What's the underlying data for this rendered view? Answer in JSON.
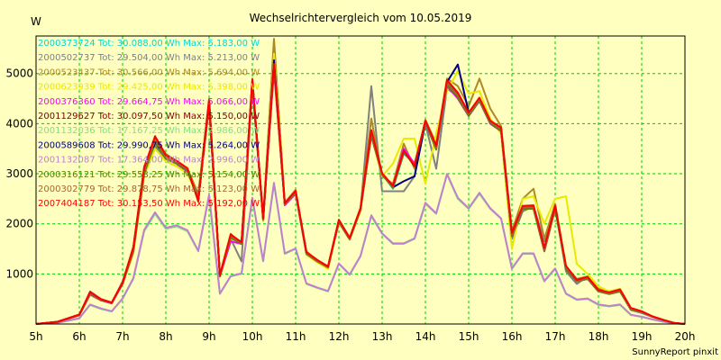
{
  "chart_data": {
    "type": "line",
    "title": "Wechselrichtervergleich vom 10.05.2019",
    "ylabel": "W",
    "xlabel": "",
    "footer": "SunnyReport pinxit",
    "x_ticks": [
      "5h",
      "6h",
      "7h",
      "8h",
      "9h",
      "10h",
      "11h",
      "12h",
      "13h",
      "14h",
      "15h",
      "16h",
      "17h",
      "18h",
      "19h",
      "20h"
    ],
    "y_ticks": [
      1000,
      2000,
      3000,
      4000,
      5000
    ],
    "xlim": [
      5,
      20
    ],
    "ylim": [
      0,
      5750
    ],
    "grid": true,
    "grid_color": "#00c800",
    "legend_position": "top-left",
    "x": [
      5.0,
      5.5,
      6.0,
      6.25,
      6.5,
      6.75,
      7.0,
      7.25,
      7.5,
      7.75,
      8.0,
      8.25,
      8.5,
      8.75,
      9.0,
      9.25,
      9.5,
      9.75,
      10.0,
      10.25,
      10.5,
      10.75,
      11.0,
      11.25,
      11.5,
      11.75,
      12.0,
      12.25,
      12.5,
      12.75,
      13.0,
      13.25,
      13.5,
      13.75,
      14.0,
      14.25,
      14.5,
      14.75,
      15.0,
      15.25,
      15.5,
      15.75,
      16.0,
      16.25,
      16.5,
      16.75,
      17.0,
      17.25,
      17.5,
      17.75,
      18.0,
      18.25,
      18.5,
      18.75,
      19.0,
      19.25,
      19.5,
      19.75,
      20.0
    ],
    "series": [
      {
        "name": "2000373724 Tot: 30.088,00 Wh Max: 5.183,00 W",
        "color": "#00d8d8",
        "values": [
          0,
          40,
          180,
          600,
          480,
          420,
          800,
          1450,
          3000,
          3600,
          3300,
          3200,
          3050,
          2550,
          4400,
          950,
          1750,
          1650,
          4850,
          2100,
          5180,
          2400,
          2650,
          1400,
          1250,
          1150,
          2050,
          1700,
          2300,
          3800,
          3000,
          2700,
          3400,
          3200,
          4050,
          3500,
          4800,
          4550,
          4200,
          4500,
          4050,
          3900,
          1800,
          2300,
          2300,
          1500,
          2300,
          1100,
          850,
          900,
          650,
          600,
          650,
          300,
          250,
          150,
          80,
          20,
          0
        ]
      },
      {
        "name": "2000502737 Tot: 29.504,00 Wh Max: 5.213,00 W",
        "color": "#808080",
        "values": [
          0,
          40,
          180,
          650,
          500,
          420,
          850,
          1500,
          3100,
          3550,
          3250,
          3150,
          3050,
          2500,
          4350,
          950,
          1700,
          1250,
          4800,
          2100,
          5213,
          2380,
          2600,
          1450,
          1250,
          1150,
          2050,
          1700,
          2280,
          4750,
          2650,
          2650,
          2650,
          2950,
          4000,
          3100,
          4700,
          4550,
          4200,
          4450,
          4000,
          3850,
          1700,
          2250,
          2350,
          1650,
          2350,
          1050,
          800,
          950,
          650,
          600,
          650,
          280,
          220,
          140,
          70,
          15,
          0
        ]
      },
      {
        "name": "2000523437 Tot: 30.566,00 Wh Max: 5.694,00 W",
        "color": "#b08820",
        "values": [
          0,
          45,
          190,
          620,
          500,
          430,
          830,
          1550,
          3150,
          3700,
          3400,
          3250,
          3100,
          2600,
          4500,
          980,
          1800,
          1600,
          4900,
          2100,
          5694,
          2420,
          2680,
          1430,
          1280,
          1150,
          2080,
          1720,
          2320,
          4100,
          2950,
          2800,
          3600,
          3100,
          4080,
          3600,
          4900,
          4750,
          4350,
          4900,
          4300,
          3950,
          1850,
          2500,
          2700,
          1700,
          2400,
          1150,
          900,
          950,
          700,
          650,
          700,
          320,
          250,
          150,
          80,
          20,
          0
        ]
      },
      {
        "name": "2000623939 Tot: 29.425,00 Wh Max: 5.398,00 W",
        "color": "#e8e800",
        "values": [
          0,
          40,
          170,
          580,
          470,
          420,
          790,
          1400,
          2950,
          3500,
          3250,
          3150,
          3000,
          2500,
          4380,
          940,
          1700,
          1600,
          4800,
          2050,
          5398,
          2380,
          2620,
          1380,
          1230,
          1100,
          2020,
          1680,
          2250,
          3750,
          2950,
          3200,
          3700,
          3700,
          2800,
          3800,
          4650,
          5050,
          4600,
          4650,
          4100,
          3800,
          1500,
          2500,
          2550,
          2000,
          2500,
          2550,
          1200,
          1000,
          750,
          650,
          700,
          300,
          240,
          150,
          80,
          20,
          0
        ]
      },
      {
        "name": "2000376360 Tot: 29.664,75 Wh Max: 5.066,00 W",
        "color": "#ff00ff",
        "values": [
          0,
          40,
          175,
          590,
          470,
          410,
          800,
          1450,
          3000,
          3650,
          3300,
          3200,
          3050,
          2500,
          4350,
          950,
          1650,
          1600,
          4750,
          2080,
          5066,
          2370,
          2600,
          1400,
          1250,
          1130,
          2030,
          1690,
          2280,
          3750,
          3000,
          2750,
          3500,
          3200,
          4000,
          3500,
          4750,
          4500,
          4150,
          4450,
          4000,
          3850,
          1750,
          2300,
          2300,
          1450,
          2300,
          1100,
          850,
          900,
          650,
          600,
          650,
          290,
          240,
          145,
          75,
          18,
          0
        ]
      },
      {
        "name": "2001129627 Tot: 30.097,50 Wh Max: 5.150,00 W",
        "color": "#800000",
        "values": [
          0,
          45,
          185,
          630,
          490,
          425,
          820,
          1520,
          3100,
          3720,
          3350,
          3250,
          3100,
          2450,
          4450,
          970,
          1780,
          1620,
          4850,
          2100,
          5150,
          2400,
          2650,
          1430,
          1270,
          1140,
          2070,
          1710,
          2300,
          3850,
          3000,
          2750,
          3450,
          3150,
          4050,
          3550,
          4850,
          4600,
          4200,
          4500,
          4050,
          3900,
          1800,
          2350,
          2350,
          1500,
          2350,
          1150,
          870,
          930,
          670,
          620,
          680,
          310,
          250,
          150,
          80,
          20,
          0
        ]
      },
      {
        "name": "2001132036 Tot: 17.167,25 Wh Max: 2.986,00 W",
        "color": "#80e080",
        "values": [
          0,
          25,
          110,
          380,
          300,
          250,
          500,
          900,
          1850,
          2200,
          1900,
          1950,
          1850,
          1450,
          2550,
          600,
          950,
          1000,
          2500,
          1250,
          2800,
          1400,
          1500,
          800,
          720,
          650,
          1200,
          980,
          1350,
          2150,
          1800,
          1600,
          1600,
          1700,
          2400,
          2200,
          2986,
          2500,
          2300,
          2600,
          2300,
          2100,
          1100,
          1400,
          1400,
          850,
          1100,
          600,
          480,
          500,
          380,
          350,
          380,
          180,
          140,
          90,
          45,
          12,
          0
        ]
      },
      {
        "name": "2000589608 Tot: 29.990,75 Wh Max: 5.264,00 W",
        "color": "#000080",
        "values": [
          0,
          42,
          180,
          610,
          485,
          420,
          810,
          1490,
          3050,
          3650,
          3320,
          3230,
          3080,
          2480,
          4420,
          960,
          1760,
          1610,
          4820,
          2090,
          5264,
          2390,
          2640,
          1410,
          1260,
          1140,
          2050,
          1700,
          2290,
          3800,
          3000,
          2730,
          2850,
          2950,
          4030,
          3520,
          4830,
          5180,
          4220,
          4480,
          4030,
          3870,
          1780,
          2320,
          2320,
          1480,
          2320,
          1120,
          860,
          910,
          660,
          610,
          660,
          300,
          245,
          148,
          78,
          19,
          0
        ]
      },
      {
        "name": "2001132087 Tot: 17.364,00 Wh Max: 2.996,00 W",
        "color": "#c080d0",
        "values": [
          0,
          25,
          115,
          390,
          310,
          255,
          510,
          920,
          1880,
          2230,
          1920,
          1970,
          1870,
          1460,
          2580,
          610,
          960,
          1010,
          2520,
          1260,
          2820,
          1410,
          1510,
          810,
          730,
          660,
          1210,
          990,
          1360,
          2170,
          1810,
          1610,
          1610,
          1710,
          2420,
          2210,
          2996,
          2520,
          2310,
          2620,
          2310,
          2110,
          1110,
          1410,
          1410,
          860,
          1110,
          610,
          490,
          510,
          390,
          360,
          390,
          185,
          145,
          92,
          46,
          12,
          0
        ]
      },
      {
        "name": "2000316121 Tot: 29.558,25 Wh Max: 5.154,00 W",
        "color": "#608000",
        "values": [
          0,
          40,
          178,
          600,
          478,
          418,
          805,
          1470,
          3020,
          3620,
          3300,
          3210,
          3060,
          2490,
          4360,
          950,
          1720,
          1600,
          4790,
          2080,
          5154,
          2380,
          2620,
          1400,
          1250,
          1130,
          2040,
          1690,
          2280,
          3770,
          2980,
          2720,
          3420,
          3180,
          4020,
          3480,
          4780,
          4520,
          4160,
          4460,
          4010,
          3850,
          1760,
          2300,
          2300,
          1460,
          2300,
          1100,
          850,
          900,
          650,
          600,
          650,
          290,
          240,
          145,
          75,
          18,
          0
        ]
      },
      {
        "name": "2000302779 Tot: 29.878,75 Wh Max: 5.123,00 W",
        "color": "#a06830",
        "values": [
          0,
          42,
          182,
          615,
          488,
          422,
          815,
          1500,
          3070,
          3680,
          3330,
          3240,
          3090,
          2500,
          4400,
          960,
          1750,
          1610,
          4810,
          2090,
          5123,
          2390,
          2630,
          1420,
          1260,
          1140,
          2060,
          1700,
          2290,
          3820,
          2990,
          2740,
          3440,
          3190,
          4040,
          3520,
          4820,
          4560,
          4190,
          4490,
          4040,
          3880,
          1790,
          2330,
          2330,
          1490,
          2330,
          1130,
          860,
          920,
          660,
          610,
          670,
          300,
          245,
          148,
          78,
          19,
          0
        ]
      },
      {
        "name": "2007404187 Tot: 30.153,50 Wh Max: 5.192,00 W",
        "color": "#ff0000",
        "values": [
          0,
          45,
          188,
          640,
          495,
          428,
          825,
          1530,
          3120,
          3750,
          3370,
          3260,
          3110,
          2460,
          4470,
          975,
          1790,
          1630,
          4880,
          2110,
          5192,
          2410,
          2660,
          1440,
          1280,
          1150,
          2080,
          1720,
          2310,
          3870,
          3010,
          2760,
          3460,
          3160,
          4060,
          3560,
          4870,
          4620,
          4220,
          4520,
          4060,
          3920,
          1820,
          2360,
          2370,
          1520,
          2360,
          1160,
          880,
          940,
          680,
          630,
          690,
          320,
          255,
          152,
          82,
          21,
          0
        ]
      }
    ]
  }
}
